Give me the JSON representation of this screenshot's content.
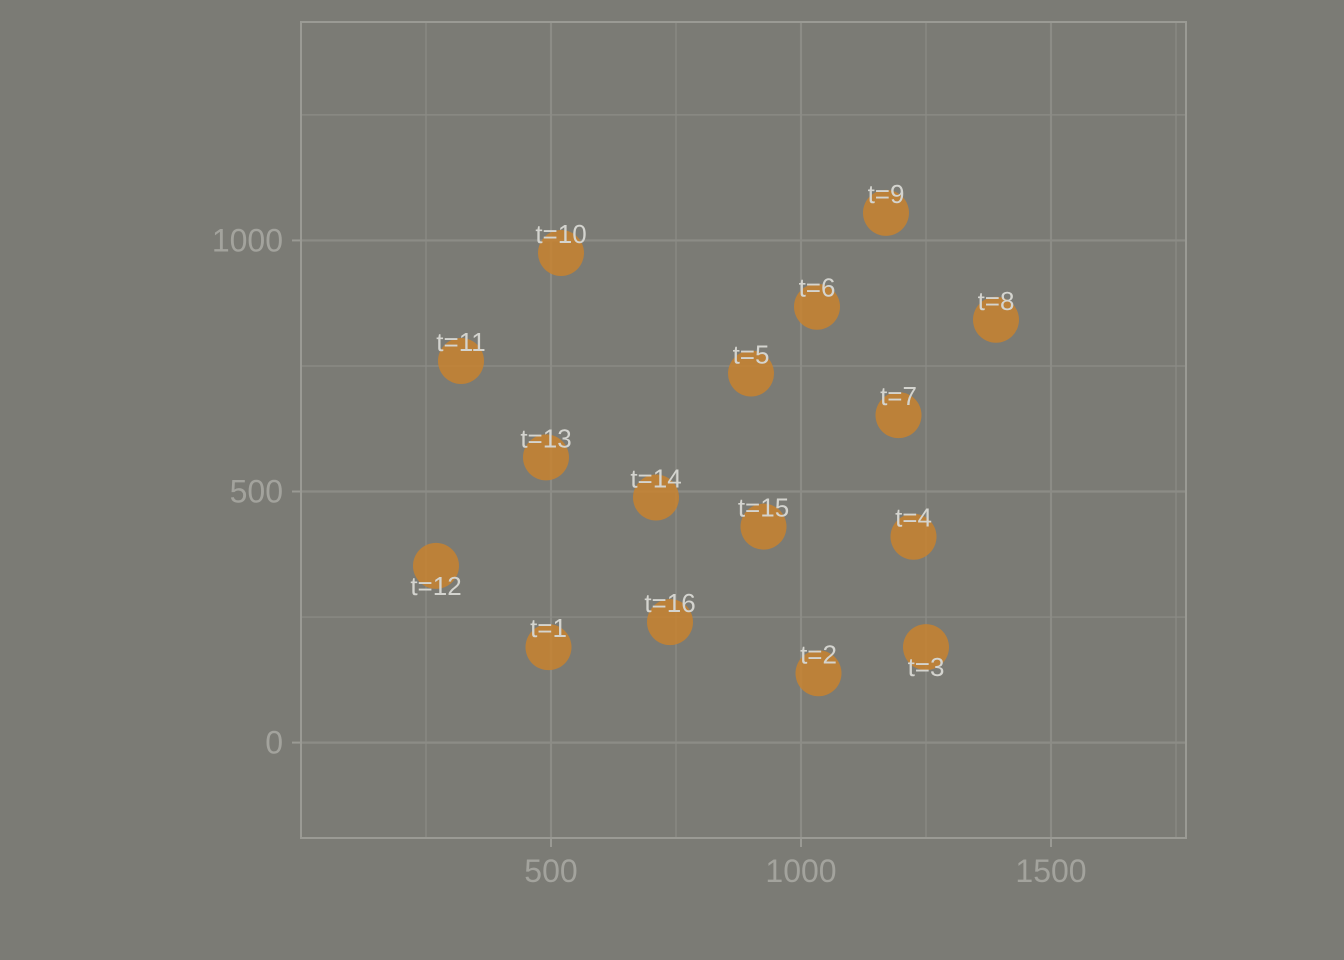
{
  "chart_data": {
    "type": "scatter",
    "title": "",
    "xlabel": "",
    "ylabel": "",
    "xlim": [
      0,
      1770
    ],
    "ylim": [
      -190,
      1435
    ],
    "x_ticks": [
      500,
      1000,
      1500
    ],
    "y_ticks": [
      0,
      500,
      1000
    ],
    "grid": true,
    "colors": {
      "background": "#7b7b75",
      "point": "#c8832f",
      "grid": "#8c8c86",
      "frame": "#9a9a94",
      "tick_label": "#a3a39d",
      "point_label": "#d4d4cf"
    },
    "points": [
      {
        "label": "t=1",
        "x": 495,
        "y": 190,
        "label_pos": "above"
      },
      {
        "label": "t=2",
        "x": 1035,
        "y": 138,
        "label_pos": "above"
      },
      {
        "label": "t=3",
        "x": 1250,
        "y": 190,
        "label_pos": "below"
      },
      {
        "label": "t=4",
        "x": 1225,
        "y": 410,
        "label_pos": "above"
      },
      {
        "label": "t=5",
        "x": 900,
        "y": 735,
        "label_pos": "above"
      },
      {
        "label": "t=6",
        "x": 1032,
        "y": 868,
        "label_pos": "above"
      },
      {
        "label": "t=7",
        "x": 1195,
        "y": 652,
        "label_pos": "above"
      },
      {
        "label": "t=8",
        "x": 1390,
        "y": 842,
        "label_pos": "above"
      },
      {
        "label": "t=9",
        "x": 1170,
        "y": 1055,
        "label_pos": "above"
      },
      {
        "label": "t=10",
        "x": 520,
        "y": 975,
        "label_pos": "above"
      },
      {
        "label": "t=11",
        "x": 320,
        "y": 760,
        "label_pos": "above"
      },
      {
        "label": "t=12",
        "x": 270,
        "y": 352,
        "label_pos": "below"
      },
      {
        "label": "t=13",
        "x": 490,
        "y": 568,
        "label_pos": "above"
      },
      {
        "label": "t=14",
        "x": 710,
        "y": 488,
        "label_pos": "above"
      },
      {
        "label": "t=15",
        "x": 925,
        "y": 430,
        "label_pos": "above"
      },
      {
        "label": "t=16",
        "x": 738,
        "y": 240,
        "label_pos": "above"
      }
    ]
  }
}
